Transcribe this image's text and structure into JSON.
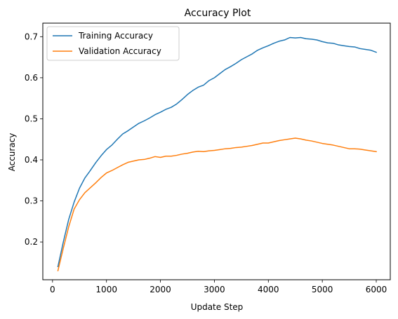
{
  "chart_data": {
    "type": "line",
    "title": "Accuracy Plot",
    "xlabel": "Update Step",
    "ylabel": "Accuracy",
    "xlim": [
      -180,
      6260
    ],
    "ylim": [
      0.108,
      0.733
    ],
    "xticks": [
      0,
      1000,
      2000,
      3000,
      4000,
      5000,
      6000
    ],
    "yticks": [
      0.2,
      0.3,
      0.4,
      0.5,
      0.6,
      0.7
    ],
    "xtick_labels": [
      "0",
      "1000",
      "2000",
      "3000",
      "4000",
      "5000",
      "6000"
    ],
    "ytick_labels": [
      "0.2",
      "0.3",
      "0.4",
      "0.5",
      "0.6",
      "0.7"
    ],
    "grid": false,
    "legend_position": "top-left",
    "series": [
      {
        "name": "Training Accuracy",
        "color": "#1f77b4",
        "x": [
          100,
          200,
          300,
          400,
          500,
          600,
          700,
          800,
          900,
          1000,
          1100,
          1200,
          1300,
          1400,
          1500,
          1600,
          1700,
          1800,
          1900,
          2000,
          2100,
          2200,
          2300,
          2400,
          2500,
          2600,
          2700,
          2800,
          2900,
          3000,
          3100,
          3200,
          3300,
          3400,
          3500,
          3600,
          3700,
          3800,
          3900,
          4000,
          4100,
          4200,
          4300,
          4400,
          4500,
          4600,
          4700,
          4800,
          4900,
          5000,
          5100,
          5200,
          5300,
          5400,
          5500,
          5600,
          5700,
          5800,
          5900,
          6000
        ],
        "y": [
          0.14,
          0.2,
          0.255,
          0.297,
          0.331,
          0.356,
          0.374,
          0.393,
          0.41,
          0.425,
          0.436,
          0.45,
          0.463,
          0.471,
          0.48,
          0.489,
          0.495,
          0.502,
          0.51,
          0.516,
          0.523,
          0.528,
          0.536,
          0.547,
          0.559,
          0.569,
          0.577,
          0.582,
          0.593,
          0.6,
          0.61,
          0.62,
          0.627,
          0.635,
          0.644,
          0.651,
          0.658,
          0.667,
          0.673,
          0.678,
          0.684,
          0.689,
          0.692,
          0.698,
          0.697,
          0.698,
          0.695,
          0.694,
          0.692,
          0.688,
          0.685,
          0.684,
          0.68,
          0.678,
          0.676,
          0.675,
          0.671,
          0.669,
          0.667,
          0.662
        ]
      },
      {
        "name": "Validation Accuracy",
        "color": "#ff7f0e",
        "x": [
          100,
          200,
          300,
          400,
          500,
          600,
          700,
          800,
          900,
          1000,
          1100,
          1200,
          1300,
          1400,
          1500,
          1600,
          1700,
          1800,
          1900,
          2000,
          2100,
          2200,
          2300,
          2400,
          2500,
          2600,
          2700,
          2800,
          2900,
          3000,
          3100,
          3200,
          3300,
          3400,
          3500,
          3600,
          3700,
          3800,
          3900,
          4000,
          4100,
          4200,
          4300,
          4400,
          4500,
          4600,
          4700,
          4800,
          4900,
          5000,
          5100,
          5200,
          5300,
          5400,
          5500,
          5600,
          5700,
          5800,
          5900,
          6000
        ],
        "y": [
          0.13,
          0.185,
          0.237,
          0.28,
          0.303,
          0.32,
          0.332,
          0.344,
          0.357,
          0.368,
          0.374,
          0.381,
          0.388,
          0.394,
          0.397,
          0.4,
          0.401,
          0.404,
          0.408,
          0.406,
          0.409,
          0.409,
          0.411,
          0.414,
          0.416,
          0.419,
          0.421,
          0.42,
          0.422,
          0.423,
          0.425,
          0.427,
          0.428,
          0.43,
          0.431,
          0.433,
          0.435,
          0.438,
          0.441,
          0.441,
          0.444,
          0.447,
          0.449,
          0.451,
          0.453,
          0.451,
          0.448,
          0.446,
          0.443,
          0.44,
          0.438,
          0.436,
          0.433,
          0.43,
          0.427,
          0.427,
          0.426,
          0.424,
          0.422,
          0.42
        ]
      }
    ]
  }
}
